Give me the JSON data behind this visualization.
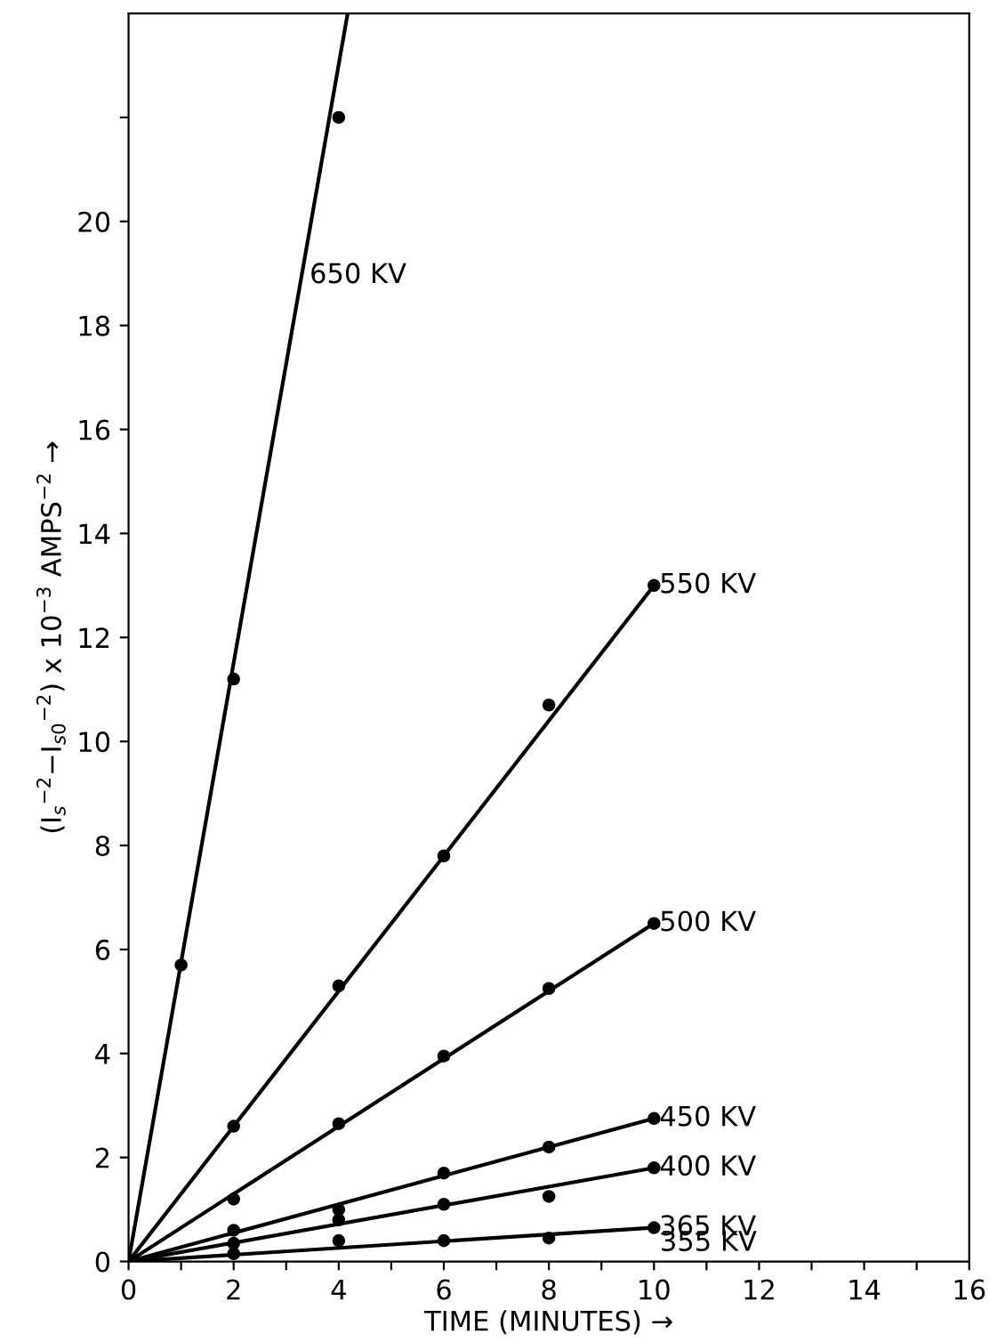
{
  "chart_data": {
    "type": "scatter",
    "xlabel": "TIME (MINUTES) →",
    "ylabel": "(I$_{s}$$^{−2}$−I$_{s0}$$^{−2}$) x 10$^{−3}$ AMPS$^{−2}$ →",
    "xlim": [
      0,
      16
    ],
    "ylim": [
      0,
      24
    ],
    "xticks": [
      0,
      {
        "value": 1,
        "label": null
      },
      2,
      {
        "value": 3,
        "label": null
      },
      4,
      {
        "value": 5,
        "label": null
      },
      6,
      {
        "value": 7,
        "label": null
      },
      8,
      {
        "value": 9,
        "label": null
      },
      10,
      {
        "value": 11,
        "label": null
      },
      12,
      {
        "value": 13,
        "label": null
      },
      14,
      {
        "value": 15,
        "label": null
      },
      16
    ],
    "yticks": [
      0,
      2,
      4,
      6,
      8,
      10,
      12,
      14,
      16,
      18,
      20,
      {
        "value": 22,
        "label": null
      }
    ],
    "grid": false,
    "legend": false,
    "series": [
      {
        "marker": "circle",
        "color": "#000000",
        "x": [
          1,
          2,
          4
        ],
        "values": [
          5.7,
          11.2,
          22.0
        ]
      },
      {
        "type": "line",
        "marker": "none",
        "name": "650 KV",
        "color": "#000000",
        "x": [
          0,
          4.17
        ],
        "values": [
          0,
          24
        ]
      },
      {
        "marker": "circle",
        "color": "#000000",
        "x": [
          2,
          4,
          6,
          8,
          10
        ],
        "values": [
          2.6,
          5.3,
          7.8,
          10.7,
          13.0
        ]
      },
      {
        "type": "line",
        "marker": "none",
        "name": "550 KV",
        "color": "#000000",
        "x": [
          0,
          10
        ],
        "values": [
          0,
          13.0
        ]
      },
      {
        "marker": "circle",
        "color": "#000000",
        "x": [
          2,
          4,
          6,
          8,
          10
        ],
        "values": [
          1.2,
          2.65,
          3.95,
          5.25,
          6.5
        ]
      },
      {
        "type": "line",
        "marker": "none",
        "name": "500 KV",
        "color": "#000000",
        "x": [
          0,
          10
        ],
        "values": [
          0,
          6.5
        ]
      },
      {
        "marker": "circle",
        "color": "#000000",
        "x": [
          2,
          4,
          6,
          8,
          10
        ],
        "values": [
          0.6,
          1.0,
          1.7,
          2.2,
          2.75
        ]
      },
      {
        "type": "line",
        "marker": "none",
        "name": "450 KV",
        "color": "#000000",
        "x": [
          0,
          10
        ],
        "values": [
          0,
          2.75
        ]
      },
      {
        "marker": "circle",
        "color": "#000000",
        "x": [
          2,
          4,
          6,
          8,
          10
        ],
        "values": [
          0.35,
          0.8,
          1.1,
          1.25,
          1.8
        ]
      },
      {
        "type": "line",
        "marker": "none",
        "name": "400 KV",
        "color": "#000000",
        "x": [
          0,
          10
        ],
        "values": [
          0,
          1.8
        ]
      },
      {
        "marker": "circle",
        "color": "#000000",
        "x": [
          2,
          4,
          6,
          8,
          10
        ],
        "values": [
          0.15,
          0.4,
          0.4,
          0.45,
          0.65
        ]
      },
      {
        "type": "line",
        "marker": "none",
        "name": "365 KV",
        "color": "#000000",
        "x": [
          0,
          10
        ],
        "values": [
          0,
          0.65
        ]
      }
    ],
    "annotations": [
      "355 KV"
    ]
  }
}
